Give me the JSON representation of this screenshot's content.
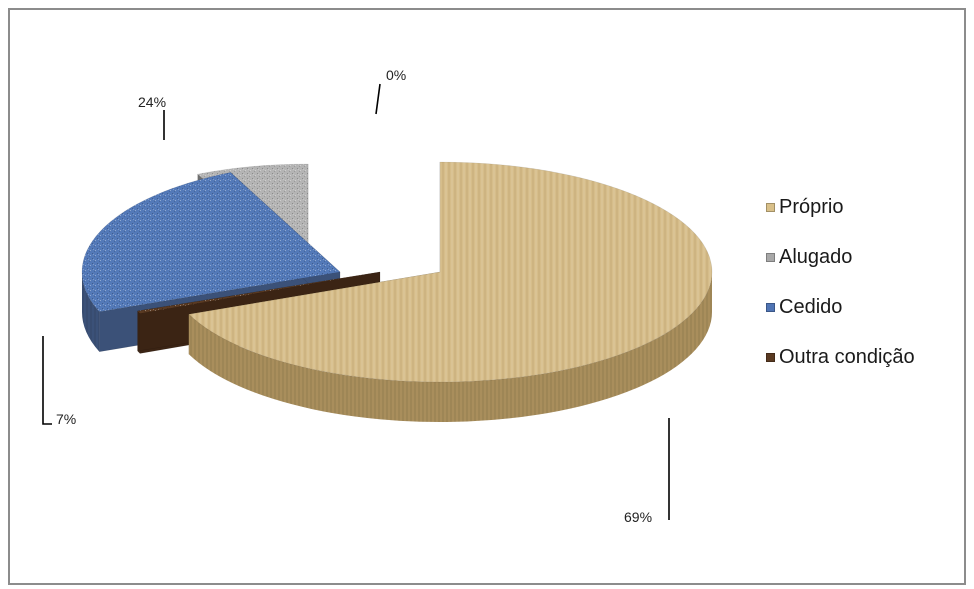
{
  "chart_data": {
    "type": "pie",
    "style": "3d-exploded",
    "title": "",
    "legend_position": "right",
    "slices": [
      {
        "name": "Próprio",
        "value": 69,
        "label": "69%",
        "color": "#d6bd8a",
        "side_color": "#a98e5c"
      },
      {
        "name": "Outra condição",
        "value": 0.4,
        "label": "0%",
        "color": "#5a3a22",
        "side_color": "#3b2414"
      },
      {
        "name": "Cedido",
        "value": 24,
        "label": "24%",
        "color": "#5379b8",
        "side_color": "#3b5178"
      },
      {
        "name": "Alugado",
        "value": 7,
        "label": "7%",
        "color": "#b4b4b4",
        "side_color": "#6e6e6e"
      }
    ]
  },
  "legend": {
    "items": [
      {
        "label": "Próprio",
        "color": "#d9c089"
      },
      {
        "label": "Alugado",
        "color": "#a8a8a8"
      },
      {
        "label": "Cedido",
        "color": "#4f74b4"
      },
      {
        "label": "Outra condição",
        "color": "#5a3a22"
      }
    ]
  }
}
